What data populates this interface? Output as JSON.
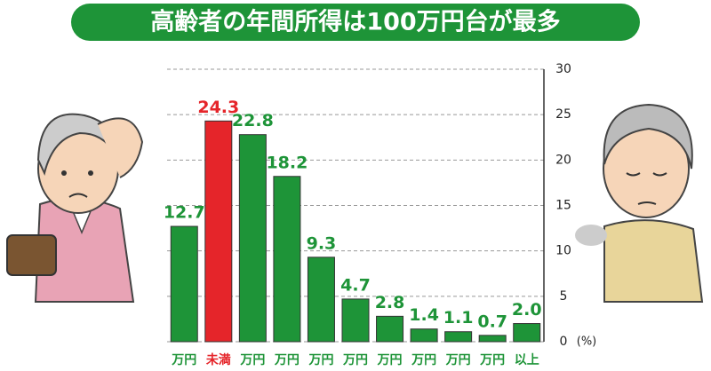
{
  "chart_data": {
    "type": "bar",
    "title": "高齢者の年間所得は100万円台が最多",
    "unit": "(%)",
    "categories": [
      "万円",
      "未満",
      "万円",
      "万円",
      "万円",
      "万円",
      "万円",
      "万円",
      "万円",
      "万円",
      "以上"
    ],
    "values": [
      12.7,
      24.3,
      22.8,
      18.2,
      9.3,
      4.7,
      2.8,
      1.4,
      1.1,
      0.7,
      2.0
    ],
    "value_labels": [
      "12.7",
      "24.3",
      "22.8",
      "18.2",
      "9.3",
      "4.7",
      "2.8",
      "1.4",
      "1.1",
      "0.7",
      "2.0"
    ],
    "colors": [
      "#1e9438",
      "#e5252a",
      "#1e9438",
      "#1e9438",
      "#1e9438",
      "#1e9438",
      "#1e9438",
      "#1e9438",
      "#1e9438",
      "#1e9438",
      "#1e9438"
    ],
    "ylim": [
      0,
      30
    ],
    "yticks": [
      0,
      5,
      10,
      15,
      20,
      25,
      30
    ],
    "grid": true
  }
}
